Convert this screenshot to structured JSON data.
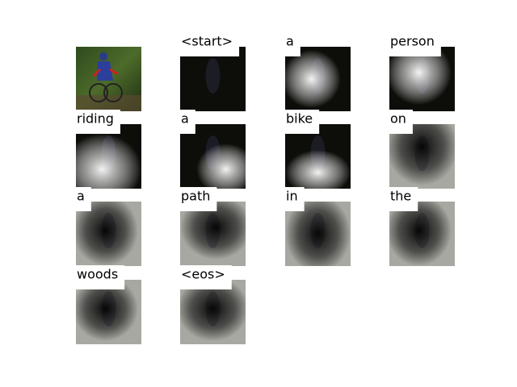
{
  "words": [
    "<start>",
    "a",
    "person",
    "riding",
    "a",
    "bike",
    "on",
    "a",
    "path",
    "in",
    "the",
    "woods",
    "<eos>"
  ]
}
